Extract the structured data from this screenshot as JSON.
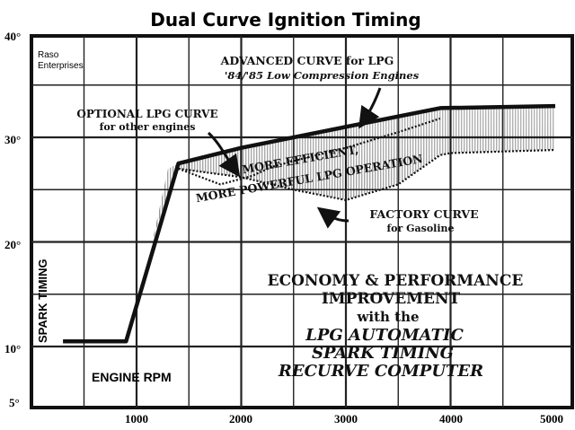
{
  "page": {
    "title": "Dual Curve Ignition Timing",
    "brand_line1": "Raso",
    "brand_line2": "Enterprises"
  },
  "chart_data": {
    "type": "line",
    "title": "Dual Curve Ignition Timing",
    "xlabel": "ENGINE RPM",
    "ylabel": "SPARK TIMING",
    "x_ticks": [
      "1000",
      "2000",
      "3000",
      "4000",
      "5000"
    ],
    "y_ticks": [
      "5°",
      "10°",
      "20°",
      "30°",
      "40°"
    ],
    "xlim": [
      0,
      5000
    ],
    "ylim": [
      5,
      40
    ],
    "grid": true,
    "series": [
      {
        "name": "ADVANCED CURVE for LPG",
        "x": [
          300,
          900,
          1400,
          2000,
          3000,
          3900,
          5000
        ],
        "y": [
          10.5,
          10.5,
          27.5,
          29.0,
          31.0,
          32.8,
          33.0
        ]
      },
      {
        "name": "FACTORY CURVE for Gasoline",
        "x": [
          1400,
          2000,
          2500,
          3000,
          3500,
          3900,
          4000,
          5000
        ],
        "y": [
          27.0,
          26.2,
          25.0,
          24.0,
          25.5,
          28.3,
          28.5,
          28.8
        ]
      },
      {
        "name": "OPTIONAL LPG CURVE",
        "x": [
          1400,
          1800,
          2100,
          2300,
          2600,
          3000,
          3500,
          3900
        ],
        "y": [
          27.0,
          25.5,
          26.3,
          27.2,
          28.0,
          29.0,
          30.5,
          31.8
        ]
      }
    ],
    "annotations": [
      {
        "key": "adv1",
        "text": "ADVANCED CURVE for LPG"
      },
      {
        "key": "adv2",
        "text": "'84/'85 Low Compression Engines"
      },
      {
        "key": "opt1",
        "text": "OPTIONAL LPG CURVE"
      },
      {
        "key": "opt2",
        "text": "for other engines"
      },
      {
        "key": "eff1",
        "text": "MORE EFFICIENT,"
      },
      {
        "key": "eff2",
        "text": "MORE POWERFUL LPG OPERATION"
      },
      {
        "key": "fac1",
        "text": "FACTORY CURVE"
      },
      {
        "key": "fac2",
        "text": "for Gasoline"
      },
      {
        "key": "eco1",
        "text": "ECONOMY & PERFORMANCE"
      },
      {
        "key": "eco2",
        "text": "IMPROVEMENT"
      },
      {
        "key": "eco3",
        "text": "with the"
      },
      {
        "key": "eco4",
        "text": "LPG AUTOMATIC"
      },
      {
        "key": "eco5",
        "text": "SPARK TIMING"
      },
      {
        "key": "eco6",
        "text": "RECURVE COMPUTER"
      }
    ]
  }
}
